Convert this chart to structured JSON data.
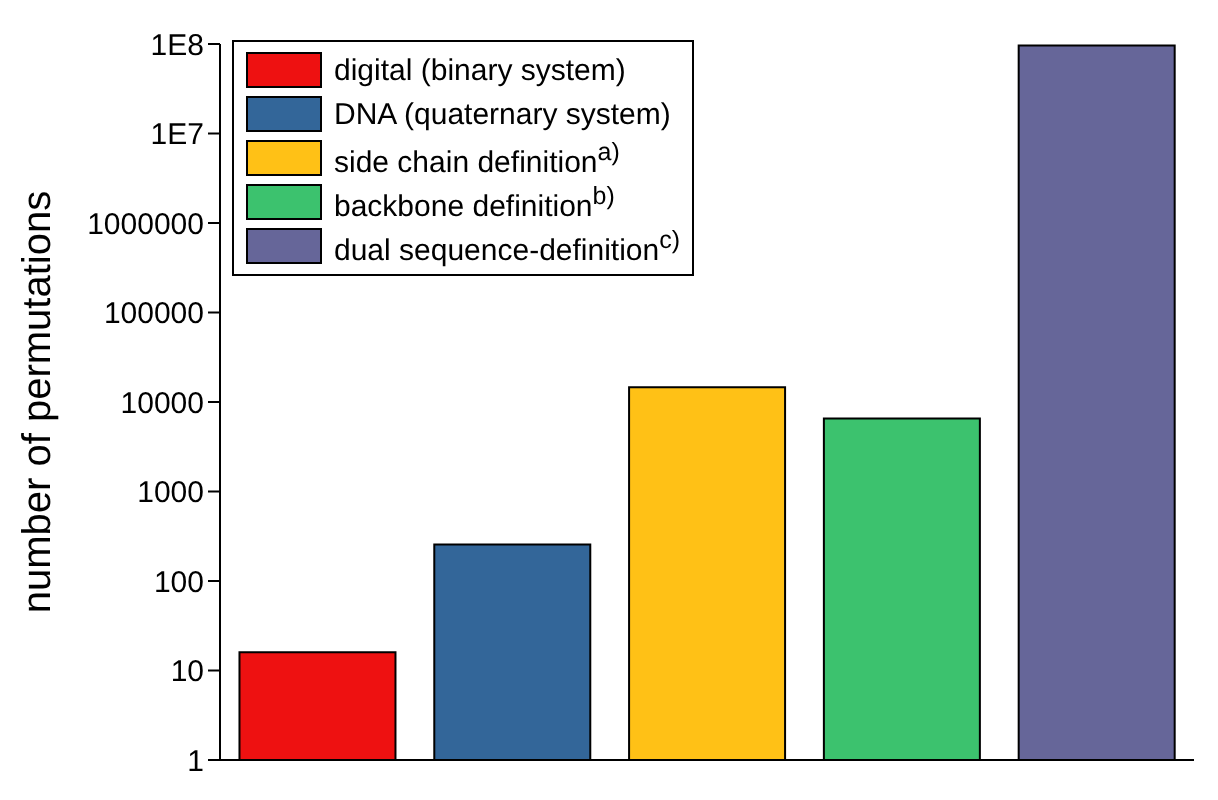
{
  "chart_data": {
    "type": "bar",
    "ylabel": "number of permutations",
    "log": "y",
    "categories": [
      null,
      null,
      null,
      null,
      null
    ],
    "series": [
      {
        "name": "digital (binary system)",
        "color": "#ee1111",
        "values": [
          16,
          null,
          null,
          null,
          null
        ]
      },
      {
        "name": "DNA (quaternary system)",
        "color": "#336699",
        "values": [
          null,
          256,
          null,
          null,
          null
        ]
      },
      {
        "name": "side chain definition$^{a)}$",
        "color": "#ffc116",
        "values": [
          null,
          null,
          14641,
          null,
          null
        ]
      },
      {
        "name": "backbone definition$^{b)}$",
        "color": "#3cc26e",
        "values": [
          null,
          null,
          null,
          6561,
          null
        ]
      },
      {
        "name": "dual sequence-definition$^{c)}$",
        "color": "#666699",
        "values": [
          null,
          null,
          null,
          null,
          96059601
        ]
      }
    ],
    "ylim": [
      1,
      100000000
    ],
    "yticks": [
      1,
      10,
      100,
      1000,
      10000,
      100000,
      1000000,
      {
        "value": 10000000,
        "label": "1E7"
      },
      {
        "value": 100000000,
        "label": "1E8"
      }
    ],
    "grid": false,
    "legend": "top left"
  }
}
